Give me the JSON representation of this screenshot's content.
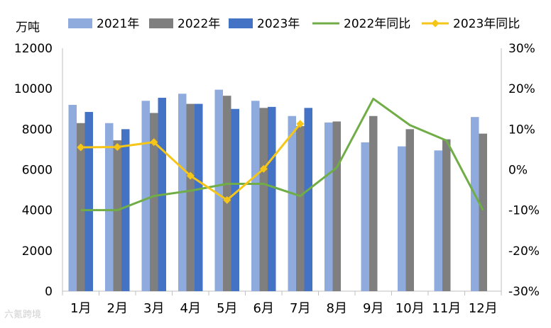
{
  "chart_data": {
    "type": "bar",
    "title": "",
    "y_unit_label": "万吨",
    "categories": [
      "1月",
      "2月",
      "3月",
      "4月",
      "5月",
      "6月",
      "7月",
      "8月",
      "9月",
      "10月",
      "11月",
      "12月"
    ],
    "ylim": [
      0,
      12000
    ],
    "y_ticks": [
      "0",
      "2000",
      "4000",
      "6000",
      "8000",
      "10000",
      "12000"
    ],
    "y2lim": [
      -30,
      30
    ],
    "y2_ticks": [
      "-30%",
      "-20%",
      "-10%",
      "0%",
      "10%",
      "20%",
      "30%"
    ],
    "grid": false,
    "legend_position": "top",
    "series": [
      {
        "name": "2021年",
        "kind": "bar",
        "axis": "left",
        "color": "#8FAADC",
        "values": [
          9200,
          8300,
          9400,
          9750,
          9950,
          9400,
          8650,
          8330,
          7350,
          7150,
          6950,
          8600
        ]
      },
      {
        "name": "2022年",
        "kind": "bar",
        "axis": "left",
        "color": "#7F7F7F",
        "values": [
          8300,
          7450,
          8800,
          9250,
          9650,
          9050,
          8150,
          8380,
          8650,
          8000,
          7500,
          7780
        ]
      },
      {
        "name": "2023年",
        "kind": "bar",
        "axis": "left",
        "color": "#4472C4",
        "values": [
          8850,
          8000,
          9550,
          9250,
          9000,
          9100,
          9050,
          null,
          null,
          null,
          null,
          null
        ]
      },
      {
        "name": "2022年同比",
        "kind": "line",
        "axis": "right",
        "color": "#70AD47",
        "values": [
          -10,
          -10,
          -6.5,
          -5.2,
          -3.5,
          -3.5,
          -6.5,
          0.5,
          17.5,
          11,
          7.2,
          -10
        ]
      },
      {
        "name": "2023年同比",
        "kind": "line",
        "axis": "right",
        "color": "#F5C518",
        "marker": "diamond",
        "values": [
          5.5,
          5.6,
          6.8,
          -1.5,
          -7.5,
          0.2,
          11.3,
          null,
          null,
          null,
          null,
          null
        ]
      }
    ]
  },
  "watermark": "六氪跨境"
}
